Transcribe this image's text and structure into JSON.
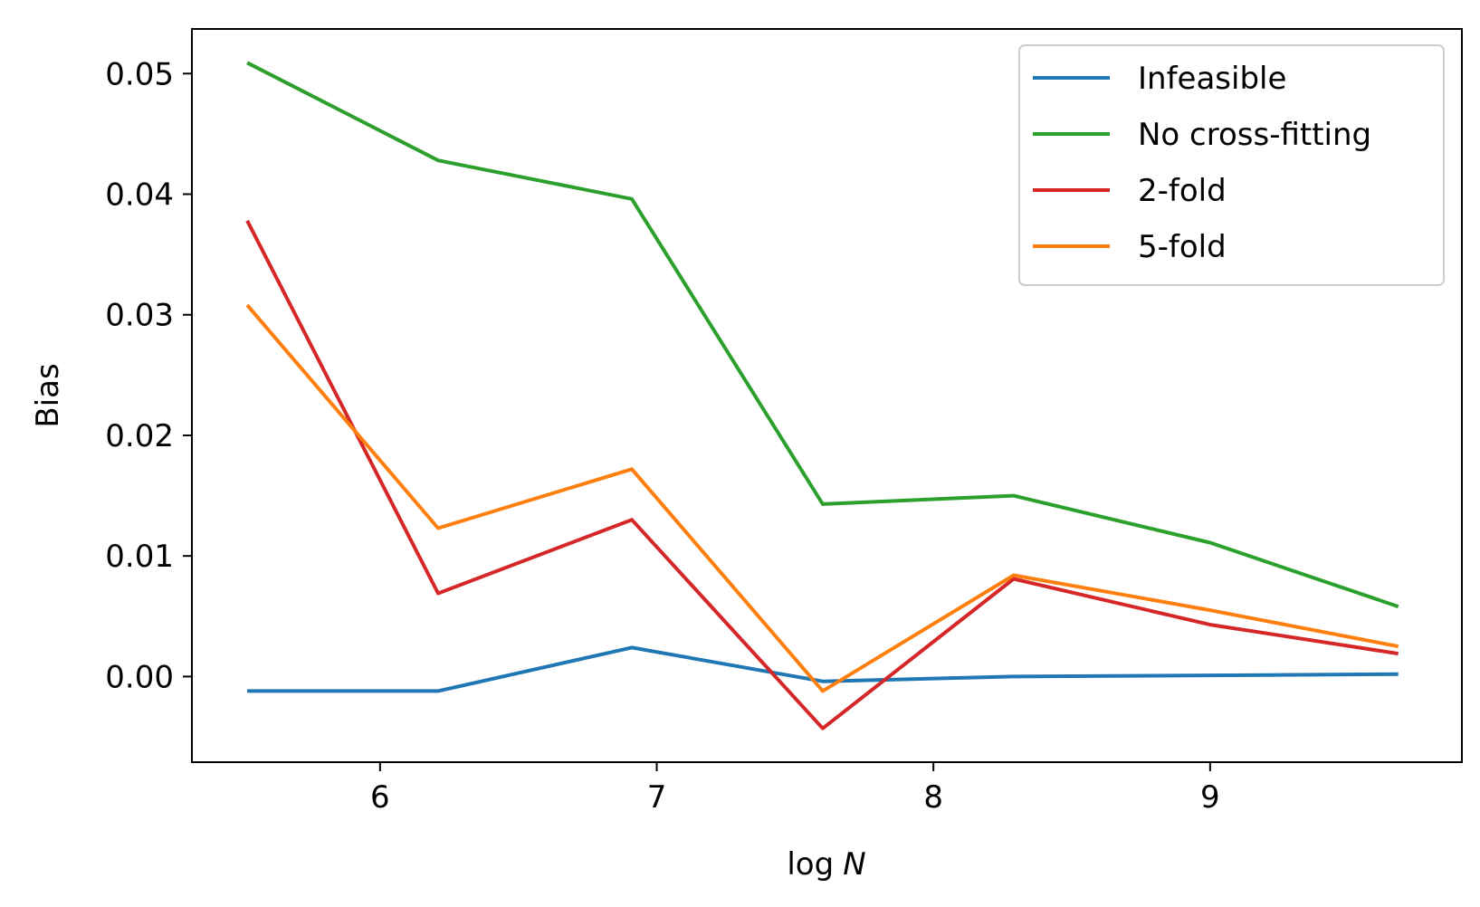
{
  "chart_data": {
    "type": "line",
    "title": "",
    "xlabel": "log",
    "xlabel_var": "N",
    "ylabel": "Bias",
    "xlim": [
      5.32,
      9.91
    ],
    "ylim": [
      -0.0071,
      0.0537
    ],
    "xticks": [
      6,
      7,
      8,
      9
    ],
    "xtick_labels": [
      "6",
      "7",
      "8",
      "9"
    ],
    "yticks": [
      0.0,
      0.01,
      0.02,
      0.03,
      0.04,
      0.05
    ],
    "ytick_labels": [
      "0.00",
      "0.01",
      "0.02",
      "0.03",
      "0.04",
      "0.05"
    ],
    "grid": false,
    "legend_position": "top-right",
    "x": [
      5.52,
      6.21,
      6.91,
      7.6,
      8.29,
      9.0,
      9.68
    ],
    "series": [
      {
        "name": "Infeasible",
        "color": "#1f77b4",
        "values": [
          -0.0012,
          -0.0012,
          0.0024,
          -0.0004,
          0.0,
          0.0001,
          0.0002
        ]
      },
      {
        "name": "No cross-fitting",
        "color": "#2ca02c",
        "values": [
          0.0509,
          0.0428,
          0.0396,
          0.0143,
          0.015,
          0.0111,
          0.0058
        ]
      },
      {
        "name": "2-fold",
        "color": "#d62728",
        "values": [
          0.0378,
          0.0069,
          0.013,
          -0.0043,
          0.0081,
          0.0043,
          0.0019
        ]
      },
      {
        "name": "5-fold",
        "color": "#ff7f0e",
        "values": [
          0.0308,
          0.0123,
          0.0172,
          -0.0012,
          0.0084,
          0.0055,
          0.0025
        ]
      }
    ]
  }
}
